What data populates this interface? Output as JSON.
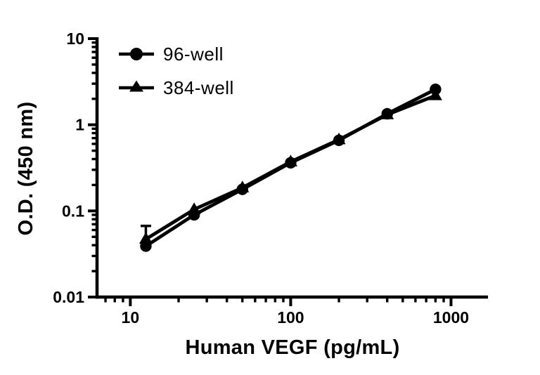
{
  "figure": {
    "background": "#ffffff",
    "ink_color": "#000000"
  },
  "chart_data": {
    "type": "line",
    "title": "",
    "xlabel": "Human VEGF (pg/mL)",
    "ylabel": "O.D. (450 nm)",
    "x_scale": "log",
    "y_scale": "log",
    "xlim": [
      6.2,
      1700
    ],
    "ylim": [
      0.01,
      10
    ],
    "x_major_ticks": [
      10,
      100,
      1000
    ],
    "x_tick_labels": [
      "10",
      "100",
      "1000"
    ],
    "y_major_ticks": [
      0.01,
      0.1,
      1,
      10
    ],
    "y_tick_labels": [
      "0.01",
      "0.1",
      "1",
      "10"
    ],
    "grid": false,
    "x": [
      12.5,
      25,
      50,
      100,
      200,
      400,
      800
    ],
    "series": [
      {
        "name": "96-well",
        "marker": "circle",
        "color": "#000000",
        "values": [
          0.039,
          0.09,
          0.178,
          0.362,
          0.66,
          1.34,
          2.58
        ],
        "error_plus": [
          0,
          0,
          0,
          0,
          0,
          0,
          0
        ]
      },
      {
        "name": "384-well",
        "marker": "triangle",
        "color": "#000000",
        "values": [
          0.047,
          0.104,
          0.186,
          0.372,
          0.672,
          1.31,
          2.18
        ],
        "error_plus": [
          0.02,
          0,
          0,
          0,
          0,
          0,
          0
        ]
      }
    ],
    "legend_position": "top-left-inside"
  }
}
